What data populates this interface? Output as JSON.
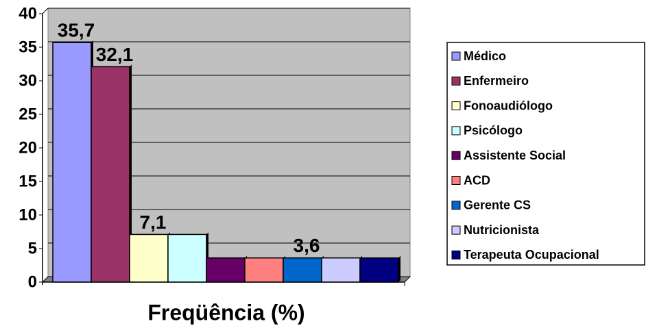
{
  "chart_data": {
    "type": "bar",
    "categories": [
      "Freqüência (%)"
    ],
    "series": [
      {
        "name": "Médico",
        "color": "#9999ff",
        "values": [
          35.7
        ],
        "value_labels": [
          "35,7"
        ]
      },
      {
        "name": "Enfermeiro",
        "color": "#993366",
        "values": [
          32.1
        ],
        "value_labels": [
          "32,1"
        ]
      },
      {
        "name": "Fonoaudiólogo",
        "color": "#ffffcc",
        "values": [
          7.1
        ],
        "value_labels": [
          "7,1"
        ]
      },
      {
        "name": "Psicólogo",
        "color": "#ccffff",
        "values": [
          7.1
        ]
      },
      {
        "name": "Assistente Social",
        "color": "#660066",
        "values": [
          3.6
        ]
      },
      {
        "name": "ACD",
        "color": "#ff8080",
        "values": [
          3.6
        ]
      },
      {
        "name": "Gerente CS",
        "color": "#0066cc",
        "values": [
          3.6
        ],
        "value_labels": [
          "3,6"
        ]
      },
      {
        "name": "Nutricionista",
        "color": "#ccccff",
        "values": [
          3.6
        ]
      },
      {
        "name": "Terapeuta Ocupacional",
        "color": "#000080",
        "values": [
          3.6
        ]
      }
    ],
    "ylim": [
      0,
      40
    ],
    "yticks": [
      0,
      5,
      10,
      15,
      20,
      25,
      30,
      35,
      40
    ],
    "grid": true,
    "legend": "right"
  }
}
